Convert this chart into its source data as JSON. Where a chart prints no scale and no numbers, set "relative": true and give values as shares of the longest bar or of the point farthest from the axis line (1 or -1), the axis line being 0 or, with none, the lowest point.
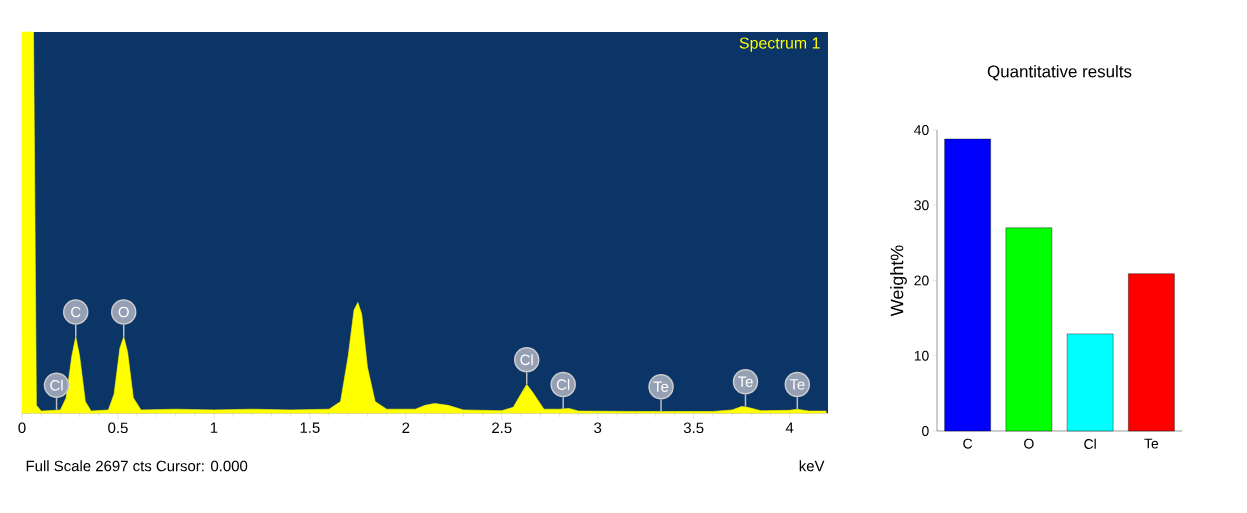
{
  "chart_data": [
    {
      "type": "area",
      "relative": true,
      "xlabel": "keV",
      "xlim": [
        0,
        4.2
      ],
      "xticks": [
        0,
        0.5,
        1,
        1.5,
        2,
        2.5,
        3,
        3.5,
        4
      ],
      "series": [
        {
          "name": "Spectrum 1",
          "color": "#ffff00",
          "x": [
            0,
            0.06,
            0.075,
            0.1,
            0.2,
            0.23,
            0.26,
            0.28,
            0.3,
            0.33,
            0.36,
            0.45,
            0.48,
            0.51,
            0.53,
            0.55,
            0.58,
            0.62,
            0.8,
            1.0,
            1.2,
            1.4,
            1.6,
            1.66,
            1.7,
            1.73,
            1.75,
            1.77,
            1.8,
            1.84,
            1.9,
            2.05,
            2.1,
            2.15,
            2.22,
            2.3,
            2.5,
            2.56,
            2.6,
            2.63,
            2.66,
            2.72,
            2.8,
            2.85,
            2.9,
            3.2,
            3.6,
            3.7,
            3.75,
            3.78,
            3.85,
            4.0,
            4.04,
            4.1,
            4.19
          ],
          "values": [
            1,
            1,
            0.02,
            0.005,
            0.008,
            0.04,
            0.15,
            0.2,
            0.15,
            0.03,
            0.005,
            0.008,
            0.05,
            0.17,
            0.2,
            0.16,
            0.04,
            0.008,
            0.01,
            0.008,
            0.01,
            0.008,
            0.01,
            0.03,
            0.15,
            0.27,
            0.29,
            0.26,
            0.12,
            0.03,
            0.01,
            0.01,
            0.02,
            0.025,
            0.02,
            0.008,
            0.006,
            0.015,
            0.05,
            0.075,
            0.055,
            0.01,
            0.01,
            0.012,
            0.005,
            0.004,
            0.004,
            0.008,
            0.017,
            0.015,
            0.006,
            0.007,
            0.01,
            0.005,
            0.005
          ]
        }
      ],
      "annotations": [
        {
          "text": "Cl",
          "x": 0.18,
          "y": 0.008
        },
        {
          "text": "C",
          "x": 0.28,
          "y": 0.2
        },
        {
          "text": "O",
          "x": 0.53,
          "y": 0.2
        },
        {
          "text": "Cl",
          "x": 2.63,
          "y": 0.075
        },
        {
          "text": "Cl",
          "x": 2.82,
          "y": 0.01
        },
        {
          "text": "Te",
          "x": 3.33,
          "y": 0.004
        },
        {
          "text": "Te",
          "x": 3.77,
          "y": 0.017
        },
        {
          "text": "Te",
          "x": 4.04,
          "y": 0.01
        },
        "Full Scale 2697 cts Cursor: 0.000"
      ]
    },
    {
      "type": "bar",
      "title": "Quantitative results",
      "ylabel": "Weight%",
      "categories": [
        "C",
        "O",
        "Cl",
        "Te"
      ],
      "values": [
        38.8,
        27.0,
        12.9,
        20.9
      ],
      "colors": [
        "#0000ff",
        "#00ff00",
        "#00ffff",
        "#ff0000"
      ],
      "ylim": [
        0,
        40
      ],
      "yticks": [
        0,
        10,
        20,
        30,
        40
      ]
    }
  ]
}
